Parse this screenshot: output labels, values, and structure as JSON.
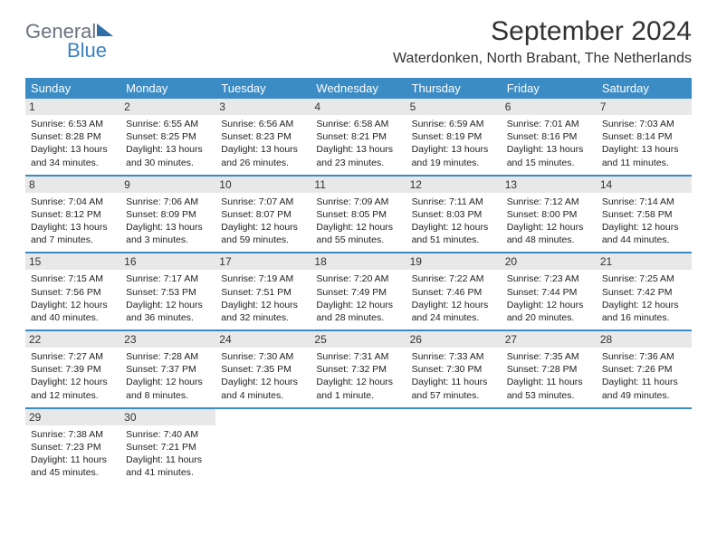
{
  "logo": {
    "general": "General",
    "blue": "Blue"
  },
  "title": "September 2024",
  "location": "Waterdonken, North Brabant, The Netherlands",
  "dayHeaders": [
    "Sunday",
    "Monday",
    "Tuesday",
    "Wednesday",
    "Thursday",
    "Friday",
    "Saturday"
  ],
  "colors": {
    "headerBar": "#3b8bc4",
    "dayNumBg": "#e8e8e8",
    "ruleColor": "#3b8bc4",
    "logoBlue": "#3b82c4",
    "logoGray": "#6b7280"
  },
  "weeks": [
    [
      {
        "n": "1",
        "sr": "6:53 AM",
        "ss": "8:28 PM",
        "dl": "13 hours and 34 minutes."
      },
      {
        "n": "2",
        "sr": "6:55 AM",
        "ss": "8:25 PM",
        "dl": "13 hours and 30 minutes."
      },
      {
        "n": "3",
        "sr": "6:56 AM",
        "ss": "8:23 PM",
        "dl": "13 hours and 26 minutes."
      },
      {
        "n": "4",
        "sr": "6:58 AM",
        "ss": "8:21 PM",
        "dl": "13 hours and 23 minutes."
      },
      {
        "n": "5",
        "sr": "6:59 AM",
        "ss": "8:19 PM",
        "dl": "13 hours and 19 minutes."
      },
      {
        "n": "6",
        "sr": "7:01 AM",
        "ss": "8:16 PM",
        "dl": "13 hours and 15 minutes."
      },
      {
        "n": "7",
        "sr": "7:03 AM",
        "ss": "8:14 PM",
        "dl": "13 hours and 11 minutes."
      }
    ],
    [
      {
        "n": "8",
        "sr": "7:04 AM",
        "ss": "8:12 PM",
        "dl": "13 hours and 7 minutes."
      },
      {
        "n": "9",
        "sr": "7:06 AM",
        "ss": "8:09 PM",
        "dl": "13 hours and 3 minutes."
      },
      {
        "n": "10",
        "sr": "7:07 AM",
        "ss": "8:07 PM",
        "dl": "12 hours and 59 minutes."
      },
      {
        "n": "11",
        "sr": "7:09 AM",
        "ss": "8:05 PM",
        "dl": "12 hours and 55 minutes."
      },
      {
        "n": "12",
        "sr": "7:11 AM",
        "ss": "8:03 PM",
        "dl": "12 hours and 51 minutes."
      },
      {
        "n": "13",
        "sr": "7:12 AM",
        "ss": "8:00 PM",
        "dl": "12 hours and 48 minutes."
      },
      {
        "n": "14",
        "sr": "7:14 AM",
        "ss": "7:58 PM",
        "dl": "12 hours and 44 minutes."
      }
    ],
    [
      {
        "n": "15",
        "sr": "7:15 AM",
        "ss": "7:56 PM",
        "dl": "12 hours and 40 minutes."
      },
      {
        "n": "16",
        "sr": "7:17 AM",
        "ss": "7:53 PM",
        "dl": "12 hours and 36 minutes."
      },
      {
        "n": "17",
        "sr": "7:19 AM",
        "ss": "7:51 PM",
        "dl": "12 hours and 32 minutes."
      },
      {
        "n": "18",
        "sr": "7:20 AM",
        "ss": "7:49 PM",
        "dl": "12 hours and 28 minutes."
      },
      {
        "n": "19",
        "sr": "7:22 AM",
        "ss": "7:46 PM",
        "dl": "12 hours and 24 minutes."
      },
      {
        "n": "20",
        "sr": "7:23 AM",
        "ss": "7:44 PM",
        "dl": "12 hours and 20 minutes."
      },
      {
        "n": "21",
        "sr": "7:25 AM",
        "ss": "7:42 PM",
        "dl": "12 hours and 16 minutes."
      }
    ],
    [
      {
        "n": "22",
        "sr": "7:27 AM",
        "ss": "7:39 PM",
        "dl": "12 hours and 12 minutes."
      },
      {
        "n": "23",
        "sr": "7:28 AM",
        "ss": "7:37 PM",
        "dl": "12 hours and 8 minutes."
      },
      {
        "n": "24",
        "sr": "7:30 AM",
        "ss": "7:35 PM",
        "dl": "12 hours and 4 minutes."
      },
      {
        "n": "25",
        "sr": "7:31 AM",
        "ss": "7:32 PM",
        "dl": "12 hours and 1 minute."
      },
      {
        "n": "26",
        "sr": "7:33 AM",
        "ss": "7:30 PM",
        "dl": "11 hours and 57 minutes."
      },
      {
        "n": "27",
        "sr": "7:35 AM",
        "ss": "7:28 PM",
        "dl": "11 hours and 53 minutes."
      },
      {
        "n": "28",
        "sr": "7:36 AM",
        "ss": "7:26 PM",
        "dl": "11 hours and 49 minutes."
      }
    ],
    [
      {
        "n": "29",
        "sr": "7:38 AM",
        "ss": "7:23 PM",
        "dl": "11 hours and 45 minutes."
      },
      {
        "n": "30",
        "sr": "7:40 AM",
        "ss": "7:21 PM",
        "dl": "11 hours and 41 minutes."
      },
      null,
      null,
      null,
      null,
      null
    ]
  ],
  "labels": {
    "sunrise": "Sunrise:",
    "sunset": "Sunset:",
    "daylight": "Daylight:"
  }
}
